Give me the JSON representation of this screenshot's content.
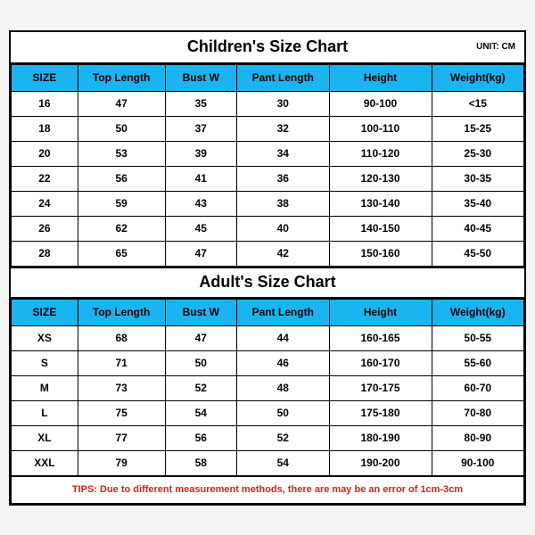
{
  "children": {
    "title": "Children's Size Chart",
    "unit": "UNIT: CM",
    "columns": [
      "SIZE",
      "Top Length",
      "Bust W",
      "Pant Length",
      "Height",
      "Weight(kg)"
    ],
    "rows": [
      [
        "16",
        "47",
        "35",
        "30",
        "90-100",
        "<15"
      ],
      [
        "18",
        "50",
        "37",
        "32",
        "100-110",
        "15-25"
      ],
      [
        "20",
        "53",
        "39",
        "34",
        "110-120",
        "25-30"
      ],
      [
        "22",
        "56",
        "41",
        "36",
        "120-130",
        "30-35"
      ],
      [
        "24",
        "59",
        "43",
        "38",
        "130-140",
        "35-40"
      ],
      [
        "26",
        "62",
        "45",
        "40",
        "140-150",
        "40-45"
      ],
      [
        "28",
        "65",
        "47",
        "42",
        "150-160",
        "45-50"
      ]
    ]
  },
  "adult": {
    "title": "Adult's Size Chart",
    "columns": [
      "SIZE",
      "Top Length",
      "Bust W",
      "Pant Length",
      "Height",
      "Weight(kg)"
    ],
    "rows": [
      [
        "XS",
        "68",
        "47",
        "44",
        "160-165",
        "50-55"
      ],
      [
        "S",
        "71",
        "50",
        "46",
        "160-170",
        "55-60"
      ],
      [
        "M",
        "73",
        "52",
        "48",
        "170-175",
        "60-70"
      ],
      [
        "L",
        "75",
        "54",
        "50",
        "175-180",
        "70-80"
      ],
      [
        "XL",
        "77",
        "56",
        "52",
        "180-190",
        "80-90"
      ],
      [
        "XXL",
        "79",
        "58",
        "54",
        "190-200",
        "90-100"
      ]
    ]
  },
  "tips": "TIPS: Due to different measurement methods, there are may be an error of 1cm-3cm",
  "style": {
    "header_bg": "#1ab4f0",
    "border_color": "#000000",
    "tips_color": "#d62020",
    "title_fontsize": 18,
    "cell_fontsize": 12,
    "column_widths_pct": [
      13,
      17,
      14,
      18,
      20,
      18
    ]
  }
}
